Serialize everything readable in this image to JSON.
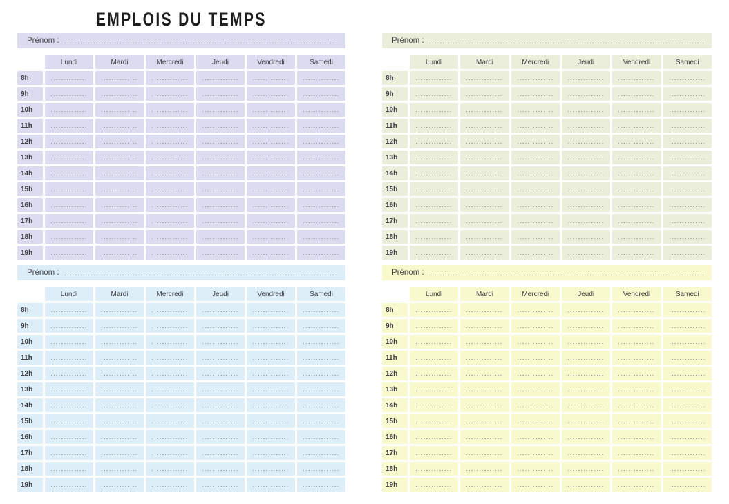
{
  "title": "EMPLOIS DU TEMPS",
  "prenom_label": "Prénom :",
  "days": [
    "Lundi",
    "Mardi",
    "Mercredi",
    "Jeudi",
    "Vendredi",
    "Samedi"
  ],
  "hours": [
    "8h",
    "9h",
    "10h",
    "11h",
    "12h",
    "13h",
    "14h",
    "15h",
    "16h",
    "17h",
    "18h",
    "19h"
  ],
  "grids": [
    {
      "position": "top-left",
      "bg": "#dcdcf0"
    },
    {
      "position": "top-right",
      "bg": "#ebeeda"
    },
    {
      "position": "bottom-left",
      "bg": "#ddeef8"
    },
    {
      "position": "bottom-right",
      "bg": "#f8f9cc"
    }
  ],
  "colors": {
    "page_background": "#ffffff",
    "dotted_line": "#96969c",
    "text": "#3c3c42",
    "title_text": "#1e1e1c"
  }
}
